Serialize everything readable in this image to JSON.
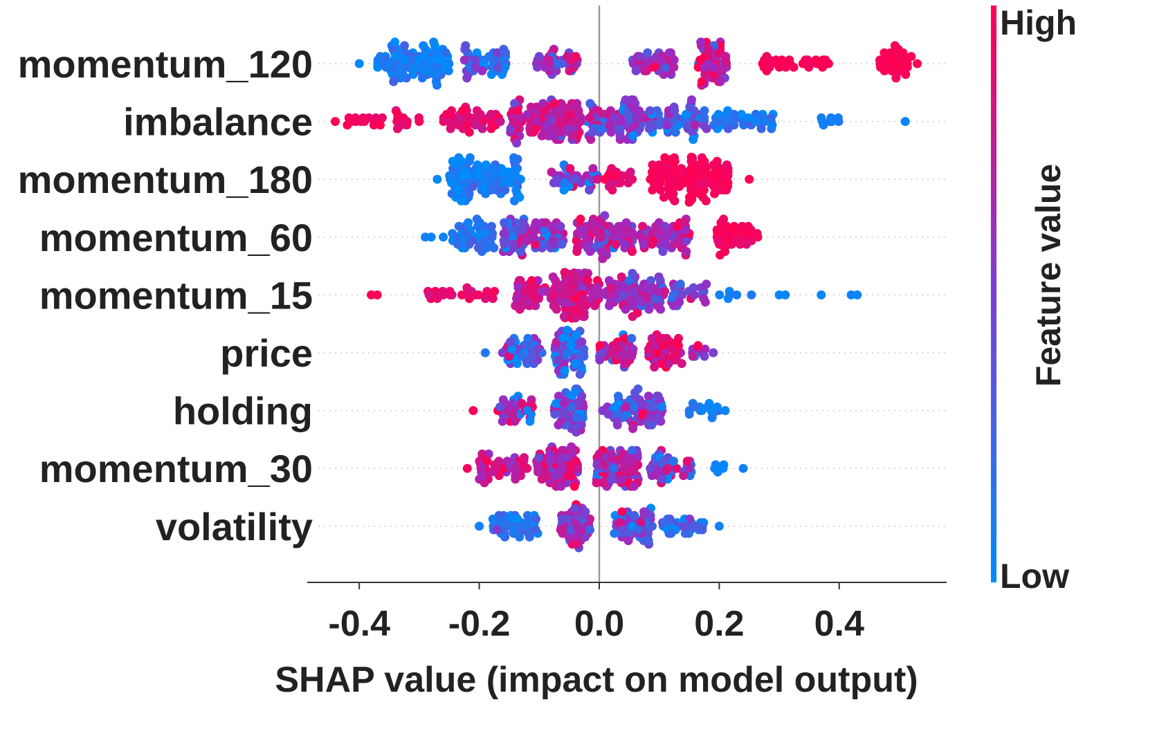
{
  "chart_data": {
    "type": "scatter",
    "subtype": "shap-beeswarm",
    "title": "",
    "xlabel": "SHAP value (impact on model output)",
    "ylabel": "",
    "xlim": [
      -0.48,
      0.58
    ],
    "xticks": [
      -0.4,
      -0.2,
      0.0,
      0.2,
      0.4
    ],
    "xtick_labels": [
      "-0.4",
      "-0.2",
      "0.0",
      "0.2",
      "0.4"
    ],
    "grid": false,
    "features": [
      {
        "name": "momentum_120",
        "clusters": [
          {
            "center": -0.31,
            "width": 0.12,
            "count": 95,
            "color_mean": 0.08,
            "color_spread": 0.08
          },
          {
            "center": -0.19,
            "width": 0.07,
            "count": 45,
            "color_mean": 0.18,
            "color_spread": 0.15
          },
          {
            "center": -0.07,
            "width": 0.07,
            "count": 35,
            "color_mean": 0.55,
            "color_spread": 0.2
          },
          {
            "center": 0.09,
            "width": 0.07,
            "count": 40,
            "color_mean": 0.6,
            "color_spread": 0.2
          },
          {
            "center": 0.19,
            "width": 0.05,
            "count": 55,
            "color_mean": 0.7,
            "color_spread": 0.2
          },
          {
            "center": 0.33,
            "width": 0.12,
            "count": 30,
            "color_mean": 0.97,
            "color_spread": 0.03
          },
          {
            "center": 0.49,
            "width": 0.05,
            "count": 35,
            "color_mean": 0.98,
            "color_spread": 0.02
          }
        ],
        "outliers": [
          [
            -0.4,
            0.02
          ],
          [
            0.53,
            1.0
          ],
          [
            0.52,
            0.99
          ]
        ]
      },
      {
        "name": "imbalance",
        "clusters": [
          {
            "center": -0.36,
            "width": 0.12,
            "count": 25,
            "color_mean": 0.92,
            "color_spread": 0.06
          },
          {
            "center": -0.21,
            "width": 0.1,
            "count": 45,
            "color_mean": 0.85,
            "color_spread": 0.1
          },
          {
            "center": -0.09,
            "width": 0.12,
            "count": 110,
            "color_mean": 0.68,
            "color_spread": 0.18
          },
          {
            "center": 0.03,
            "width": 0.1,
            "count": 80,
            "color_mean": 0.45,
            "color_spread": 0.2
          },
          {
            "center": 0.13,
            "width": 0.1,
            "count": 60,
            "color_mean": 0.25,
            "color_spread": 0.15
          },
          {
            "center": 0.24,
            "width": 0.1,
            "count": 40,
            "color_mean": 0.1,
            "color_spread": 0.08
          },
          {
            "center": 0.38,
            "width": 0.04,
            "count": 8,
            "color_mean": 0.05,
            "color_spread": 0.03
          }
        ],
        "outliers": [
          [
            -0.44,
            1.0
          ],
          [
            0.51,
            0.03
          ],
          [
            -0.42,
            0.98
          ]
        ]
      },
      {
        "name": "momentum_180",
        "clusters": [
          {
            "center": -0.19,
            "width": 0.12,
            "count": 105,
            "color_mean": 0.07,
            "color_spread": 0.07
          },
          {
            "center": -0.04,
            "width": 0.08,
            "count": 35,
            "color_mean": 0.45,
            "color_spread": 0.3
          },
          {
            "center": 0.03,
            "width": 0.05,
            "count": 20,
            "color_mean": 0.85,
            "color_spread": 0.1
          },
          {
            "center": 0.15,
            "width": 0.13,
            "count": 120,
            "color_mean": 0.96,
            "color_spread": 0.04
          }
        ],
        "outliers": [
          [
            -0.27,
            0.02
          ],
          [
            0.25,
            0.98
          ]
        ]
      },
      {
        "name": "momentum_60",
        "clusters": [
          {
            "center": -0.21,
            "width": 0.07,
            "count": 45,
            "color_mean": 0.1,
            "color_spread": 0.08
          },
          {
            "center": -0.11,
            "width": 0.1,
            "count": 80,
            "color_mean": 0.42,
            "color_spread": 0.22
          },
          {
            "center": 0.01,
            "width": 0.1,
            "count": 80,
            "color_mean": 0.62,
            "color_spread": 0.18
          },
          {
            "center": 0.11,
            "width": 0.08,
            "count": 60,
            "color_mean": 0.6,
            "color_spread": 0.2
          },
          {
            "center": 0.23,
            "width": 0.07,
            "count": 45,
            "color_mean": 0.95,
            "color_spread": 0.05
          }
        ],
        "outliers": [
          [
            -0.28,
            0.03
          ],
          [
            -0.29,
            0.05
          ],
          [
            -0.26,
            0.04
          ]
        ]
      },
      {
        "name": "momentum_15",
        "clusters": [
          {
            "center": -0.23,
            "width": 0.12,
            "count": 25,
            "color_mean": 0.88,
            "color_spread": 0.08
          },
          {
            "center": -0.09,
            "width": 0.1,
            "count": 70,
            "color_mean": 0.72,
            "color_spread": 0.15
          },
          {
            "center": -0.03,
            "width": 0.06,
            "count": 70,
            "color_mean": 0.75,
            "color_spread": 0.15
          },
          {
            "center": 0.06,
            "width": 0.1,
            "count": 80,
            "color_mean": 0.5,
            "color_spread": 0.2
          },
          {
            "center": 0.15,
            "width": 0.06,
            "count": 25,
            "color_mean": 0.35,
            "color_spread": 0.2
          },
          {
            "center": 0.23,
            "width": 0.06,
            "count": 6,
            "color_mean": 0.05,
            "color_spread": 0.03
          }
        ],
        "outliers": [
          [
            -0.38,
            0.98
          ],
          [
            -0.37,
            0.97
          ],
          [
            0.3,
            0.03
          ],
          [
            0.31,
            0.04
          ],
          [
            0.37,
            0.03
          ],
          [
            0.42,
            0.05
          ],
          [
            0.43,
            0.04
          ]
        ]
      },
      {
        "name": "price",
        "clusters": [
          {
            "center": -0.13,
            "width": 0.07,
            "count": 40,
            "color_mean": 0.3,
            "color_spread": 0.25
          },
          {
            "center": -0.05,
            "width": 0.05,
            "count": 60,
            "color_mean": 0.25,
            "color_spread": 0.2
          },
          {
            "center": 0.03,
            "width": 0.06,
            "count": 40,
            "color_mean": 0.6,
            "color_spread": 0.25
          },
          {
            "center": 0.11,
            "width": 0.06,
            "count": 45,
            "color_mean": 0.8,
            "color_spread": 0.15
          },
          {
            "center": 0.17,
            "width": 0.04,
            "count": 10,
            "color_mean": 0.5,
            "color_spread": 0.25
          }
        ],
        "outliers": [
          [
            -0.19,
            0.1
          ],
          [
            0.19,
            0.4
          ]
        ]
      },
      {
        "name": "holding",
        "clusters": [
          {
            "center": -0.14,
            "width": 0.06,
            "count": 35,
            "color_mean": 0.5,
            "color_spread": 0.3
          },
          {
            "center": -0.05,
            "width": 0.05,
            "count": 55,
            "color_mean": 0.35,
            "color_spread": 0.25
          },
          {
            "center": 0.03,
            "width": 0.05,
            "count": 25,
            "color_mean": 0.45,
            "color_spread": 0.3
          },
          {
            "center": 0.08,
            "width": 0.05,
            "count": 45,
            "color_mean": 0.45,
            "color_spread": 0.25
          },
          {
            "center": 0.17,
            "width": 0.06,
            "count": 14,
            "color_mean": 0.08,
            "color_spread": 0.06
          }
        ],
        "outliers": [
          [
            -0.21,
            0.95
          ],
          [
            0.21,
            0.03
          ]
        ]
      },
      {
        "name": "momentum_30",
        "clusters": [
          {
            "center": -0.16,
            "width": 0.08,
            "count": 45,
            "color_mean": 0.75,
            "color_spread": 0.15
          },
          {
            "center": -0.07,
            "width": 0.07,
            "count": 70,
            "color_mean": 0.7,
            "color_spread": 0.2
          },
          {
            "center": 0.03,
            "width": 0.07,
            "count": 70,
            "color_mean": 0.55,
            "color_spread": 0.25
          },
          {
            "center": 0.12,
            "width": 0.07,
            "count": 40,
            "color_mean": 0.4,
            "color_spread": 0.25
          },
          {
            "center": 0.2,
            "width": 0.03,
            "count": 5,
            "color_mean": 0.05,
            "color_spread": 0.03
          }
        ],
        "outliers": [
          [
            -0.22,
            0.95
          ],
          [
            0.24,
            0.05
          ]
        ]
      },
      {
        "name": "volatility",
        "clusters": [
          {
            "center": -0.14,
            "width": 0.08,
            "count": 45,
            "color_mean": 0.1,
            "color_spread": 0.1
          },
          {
            "center": -0.04,
            "width": 0.05,
            "count": 50,
            "color_mean": 0.5,
            "color_spread": 0.25
          },
          {
            "center": 0.06,
            "width": 0.07,
            "count": 50,
            "color_mean": 0.35,
            "color_spread": 0.25
          },
          {
            "center": 0.14,
            "width": 0.07,
            "count": 30,
            "color_mean": 0.15,
            "color_spread": 0.15
          }
        ],
        "outliers": [
          [
            -0.2,
            0.05
          ],
          [
            0.2,
            0.05
          ]
        ]
      }
    ],
    "colorbar": {
      "label": "Feature value",
      "high_label": "High",
      "low_label": "Low",
      "low_color": "#008bfb",
      "high_color": "#ff0052",
      "mid_color": "#9b2bc4"
    }
  }
}
